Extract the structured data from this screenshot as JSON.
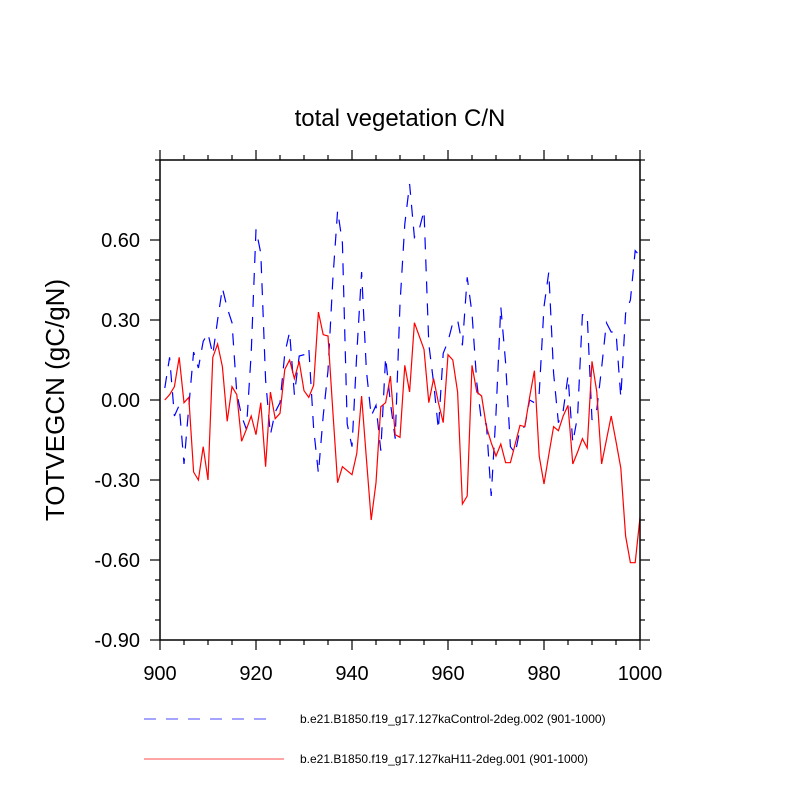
{
  "chart_data": {
    "type": "line",
    "title": "total vegetation C/N",
    "xlabel": "",
    "ylabel": "TOTVEGCN  (gC/gN)",
    "xlim": [
      900,
      1000
    ],
    "ylim": [
      -0.9,
      0.9
    ],
    "xticks": [
      900,
      920,
      940,
      960,
      980,
      1000
    ],
    "xtick_labels": [
      "900",
      "920",
      "940",
      "960",
      "980",
      "1000"
    ],
    "yticks": [
      -0.9,
      -0.6,
      -0.3,
      0.0,
      0.3,
      0.6
    ],
    "ytick_labels": [
      "-0.90",
      "-0.60",
      "-0.30",
      "0.00",
      "0.30",
      "0.60"
    ],
    "grid": false,
    "legend_placement": "bottom",
    "x_start": 901,
    "series": [
      {
        "name": "b.e21.B1850.f19_g17.127kaControl-2deg.002 (901-1000)",
        "color": "#0000ff",
        "style": "dashed",
        "values": [
          0.045,
          0.16,
          -0.06,
          -0.02,
          -0.24,
          -0.025,
          0.18,
          0.12,
          0.22,
          0.25,
          0.17,
          0.3,
          0.42,
          0.345,
          0.29,
          0.025,
          -0.06,
          -0.11,
          0.175,
          0.64,
          0.55,
          0.075,
          -0.13,
          -0.045,
          -0.01,
          0.175,
          0.255,
          0.02,
          0.165,
          0.17,
          0.195,
          -0.105,
          -0.275,
          -0.06,
          0.11,
          0.45,
          0.71,
          0.59,
          -0.09,
          -0.175,
          0.175,
          0.48,
          0.11,
          -0.06,
          -0.02,
          -0.19,
          0.16,
          -0.01,
          -0.145,
          0.36,
          0.66,
          0.81,
          0.61,
          0.64,
          0.71,
          0.21,
          0.065,
          -0.11,
          0.175,
          0.22,
          0.29,
          0.3,
          0.205,
          0.46,
          0.325,
          0.065,
          -0.085,
          -0.09,
          -0.36,
          -0.05,
          0.35,
          0.14,
          -0.175,
          -0.2,
          -0.11,
          -0.1,
          0.0,
          -0.01,
          0.025,
          0.35,
          0.48,
          0.1,
          -0.085,
          -0.04,
          0.09,
          -0.16,
          -0.06,
          0.32,
          0.32,
          -0.075,
          -0.035,
          0.12,
          0.29,
          0.255,
          0.255,
          0.01,
          0.325,
          0.375,
          0.56,
          0.54
        ]
      },
      {
        "name": "b.e21.B1850.f19_g17.127kaH11-2deg.001 (901-1000)",
        "color": "#ff0000",
        "style": "solid",
        "values": [
          0.0,
          0.02,
          0.05,
          0.16,
          -0.01,
          0.01,
          -0.27,
          -0.3,
          -0.175,
          -0.3,
          0.16,
          0.21,
          0.125,
          -0.08,
          0.05,
          0.02,
          -0.155,
          -0.11,
          -0.06,
          -0.13,
          -0.01,
          -0.25,
          0.03,
          -0.07,
          -0.05,
          0.115,
          0.15,
          0.08,
          0.145,
          0.035,
          0.01,
          0.055,
          0.33,
          0.245,
          0.24,
          -0.04,
          -0.31,
          -0.25,
          -0.265,
          -0.28,
          -0.2,
          0.015,
          -0.22,
          -0.45,
          -0.31,
          -0.025,
          -0.01,
          0.09,
          -0.13,
          -0.14,
          0.13,
          0.03,
          0.29,
          0.24,
          0.19,
          -0.01,
          0.08,
          -0.01,
          -0.085,
          0.17,
          0.15,
          0.03,
          -0.39,
          -0.36,
          0.13,
          0.03,
          0.015,
          -0.1,
          -0.16,
          -0.21,
          -0.165,
          -0.235,
          -0.235,
          -0.165,
          -0.095,
          -0.1,
          0.01,
          0.11,
          -0.21,
          -0.315,
          -0.205,
          -0.1,
          -0.115,
          -0.06,
          -0.02,
          -0.24,
          -0.195,
          -0.145,
          -0.18,
          0.145,
          0.03,
          -0.24,
          -0.15,
          -0.06,
          -0.155,
          -0.255,
          -0.51,
          -0.61,
          -0.61,
          -0.44
        ]
      }
    ]
  }
}
